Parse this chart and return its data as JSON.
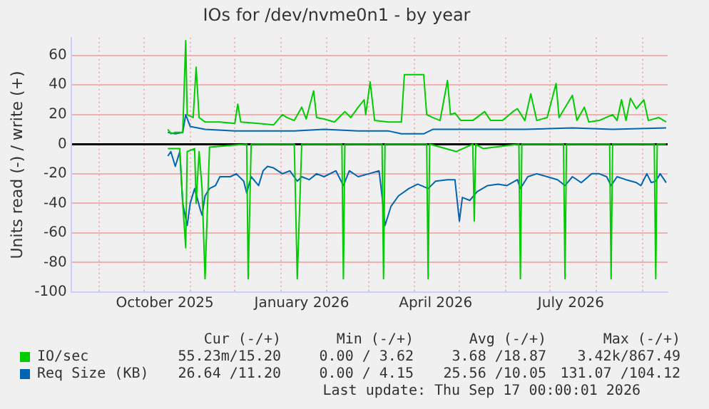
{
  "chart_data": {
    "type": "line",
    "title": "IOs for /dev/nvme0n1 - by year",
    "ylabel": "Units read (-) / write (+)",
    "xlim": [
      "2025-08-13",
      "2026-09-18"
    ],
    "xticks": [
      {
        "value": "2025-09-01",
        "label": null
      },
      {
        "value": "2025-10-01",
        "label": null
      },
      {
        "value": "2025-10-15",
        "label": "October 2025"
      },
      {
        "value": "2025-11-01",
        "label": null
      },
      {
        "value": "2025-12-01",
        "label": null
      },
      {
        "value": "2026-01-01",
        "label": null
      },
      {
        "value": "2026-01-15",
        "label": "January 2026"
      },
      {
        "value": "2026-02-01",
        "label": null
      },
      {
        "value": "2026-03-01",
        "label": null
      },
      {
        "value": "2026-04-01",
        "label": null
      },
      {
        "value": "2026-04-15",
        "label": "April 2026"
      },
      {
        "value": "2026-05-01",
        "label": null
      },
      {
        "value": "2026-06-01",
        "label": null
      },
      {
        "value": "2026-07-01",
        "label": null
      },
      {
        "value": "2026-07-15",
        "label": "July 2026"
      },
      {
        "value": "2026-08-01",
        "label": null
      },
      {
        "value": "2026-09-01",
        "label": null
      }
    ],
    "ylim": [
      -100,
      72
    ],
    "yticks": [
      -100,
      -80,
      -60,
      -40,
      -20,
      0,
      20,
      40,
      60
    ],
    "grid": true,
    "legend": "bottom",
    "series": [
      {
        "name": "IO/sec",
        "color": "#00cc00",
        "x": [
          "2025-10-17",
          "2025-10-19",
          "2025-10-22",
          "2025-10-27",
          "2025-10-29",
          "2025-10-30",
          "2025-11-03",
          "2025-11-05",
          "2025-11-07",
          "2025-11-11",
          "2025-11-21",
          "2025-12-01",
          "2025-12-03",
          "2025-12-05",
          "2025-12-17",
          "2025-12-27",
          "2026-01-02",
          "2026-01-05",
          "2026-01-10",
          "2026-01-15",
          "2026-01-18",
          "2026-01-23",
          "2026-01-25",
          "2026-01-30",
          "2026-02-06",
          "2026-02-13",
          "2026-02-17",
          "2026-02-22",
          "2026-02-26",
          "2026-02-27",
          "2026-03-02",
          "2026-03-05",
          "2026-03-14",
          "2026-03-23",
          "2026-03-25",
          "2026-04-07",
          "2026-04-09",
          "2026-04-13",
          "2026-04-18",
          "2026-04-23",
          "2026-04-25",
          "2026-04-28",
          "2026-05-02",
          "2026-05-10",
          "2026-05-18",
          "2026-05-22",
          "2026-05-30",
          "2026-06-06",
          "2026-06-09",
          "2026-06-14",
          "2026-06-18",
          "2026-06-22",
          "2026-06-29",
          "2026-07-05",
          "2026-07-07",
          "2026-07-16",
          "2026-07-19",
          "2026-07-24",
          "2026-07-27",
          "2026-08-03",
          "2026-08-12",
          "2026-08-15",
          "2026-08-18",
          "2026-08-21",
          "2026-08-24",
          "2026-08-28",
          "2026-09-02",
          "2026-09-05",
          "2026-09-12",
          "2026-09-17"
        ],
        "values": [
          10,
          7,
          8,
          8,
          70,
          20,
          18,
          52,
          18,
          15,
          15,
          14,
          27,
          15,
          14,
          13,
          20,
          18,
          16,
          25,
          17,
          36,
          18,
          17,
          15,
          22,
          18,
          25,
          30,
          20,
          42,
          16,
          15,
          15,
          47,
          47,
          20,
          18,
          16,
          43,
          20,
          21,
          16,
          16,
          22,
          16,
          16,
          22,
          24,
          16,
          34,
          16,
          18,
          41,
          18,
          33,
          16,
          25,
          15,
          16,
          20,
          16,
          30,
          16,
          31,
          24,
          30,
          16,
          18,
          15
        ]
      },
      {
        "color": "#00cc00",
        "x": [
          "2025-10-17",
          "2025-10-25",
          "2025-10-27",
          "2025-10-29",
          "2025-10-30",
          "2025-11-04",
          "2025-11-05",
          "2025-11-07",
          "2025-11-09",
          "2025-11-11",
          "2025-11-14",
          "2025-12-09",
          "2025-12-10",
          "2025-12-12",
          "2026-01-10",
          "2026-01-12",
          "2026-01-15",
          "2026-02-11",
          "2026-02-12",
          "2026-02-13",
          "2026-03-10",
          "2026-03-11",
          "2026-03-12",
          "2026-04-09",
          "2026-04-10",
          "2026-04-11",
          "2026-04-29",
          "2026-05-10",
          "2026-05-11",
          "2026-05-12",
          "2026-05-17",
          "2026-06-10",
          "2026-06-11",
          "2026-06-12",
          "2026-07-10",
          "2026-07-11",
          "2026-07-12",
          "2026-08-10",
          "2026-08-11",
          "2026-08-12",
          "2026-09-09",
          "2026-09-10",
          "2026-09-11",
          "2026-09-17"
        ],
        "values": [
          -3,
          -3,
          -40,
          -70,
          -5,
          -3,
          -40,
          -5,
          -30,
          -91,
          -2,
          0,
          -91,
          0,
          0,
          -91,
          0,
          0,
          -91,
          0,
          0,
          -91,
          0,
          0,
          -91,
          0,
          -5,
          0,
          -52,
          0,
          -3,
          0,
          -91,
          0,
          0,
          -91,
          0,
          0,
          -91,
          0,
          0,
          -91,
          0,
          0
        ]
      },
      {
        "name": "Req Size (KB)",
        "color": "#0066b3",
        "x": [
          "2025-10-17",
          "2025-10-22",
          "2025-10-27",
          "2025-10-29",
          "2025-11-01",
          "2025-11-06",
          "2025-11-11",
          "2025-12-01",
          "2026-01-10",
          "2026-01-30",
          "2026-02-22",
          "2026-03-14",
          "2026-03-23",
          "2026-04-07",
          "2026-04-13",
          "2026-05-10",
          "2026-06-14",
          "2026-07-16",
          "2026-08-12",
          "2026-09-17"
        ],
        "values": [
          8,
          7,
          8,
          20,
          12,
          11,
          10,
          9,
          9,
          10,
          9,
          9,
          7,
          7,
          10,
          10,
          10,
          11,
          10,
          11
        ]
      },
      {
        "color": "#0066b3",
        "x": [
          "2025-10-17",
          "2025-10-19",
          "2025-10-22",
          "2025-10-25",
          "2025-10-27",
          "2025-10-30",
          "2025-11-01",
          "2025-11-04",
          "2025-11-08",
          "2025-11-09",
          "2025-11-11",
          "2025-11-14",
          "2025-11-18",
          "2025-11-21",
          "2025-11-24",
          "2025-11-28",
          "2025-12-02",
          "2025-12-07",
          "2025-12-09",
          "2025-12-12",
          "2025-12-17",
          "2025-12-20",
          "2025-12-23",
          "2025-12-27",
          "2026-01-02",
          "2026-01-07",
          "2026-01-12",
          "2026-01-15",
          "2026-01-20",
          "2026-01-25",
          "2026-01-30",
          "2026-02-07",
          "2026-02-12",
          "2026-02-16",
          "2026-02-22",
          "2026-03-01",
          "2026-03-08",
          "2026-03-10",
          "2026-03-12",
          "2026-03-16",
          "2026-03-21",
          "2026-03-28",
          "2026-04-03",
          "2026-04-10",
          "2026-04-15",
          "2026-04-23",
          "2026-04-28",
          "2026-05-01",
          "2026-05-03",
          "2026-05-08",
          "2026-05-13",
          "2026-05-20",
          "2026-05-27",
          "2026-06-02",
          "2026-06-09",
          "2026-06-11",
          "2026-06-16",
          "2026-06-22",
          "2026-06-29",
          "2026-07-06",
          "2026-07-11",
          "2026-07-16",
          "2026-07-22",
          "2026-07-29",
          "2026-08-03",
          "2026-08-08",
          "2026-08-11",
          "2026-08-15",
          "2026-08-21",
          "2026-08-28",
          "2026-08-31",
          "2026-09-04",
          "2026-09-07",
          "2026-09-10",
          "2026-09-13",
          "2026-09-17"
        ],
        "values": [
          -8,
          -5,
          -15,
          -5,
          -40,
          -55,
          -40,
          -30,
          -45,
          -48,
          -35,
          -30,
          -28,
          -22,
          -22,
          -22,
          -20,
          -25,
          -33,
          -22,
          -28,
          -18,
          -15,
          -16,
          -20,
          -18,
          -25,
          -22,
          -24,
          -20,
          -22,
          -18,
          -28,
          -18,
          -22,
          -20,
          -18,
          -35,
          -55,
          -42,
          -35,
          -30,
          -27,
          -30,
          -25,
          -24,
          -24,
          -52,
          -36,
          -38,
          -32,
          -28,
          -27,
          -28,
          -24,
          -30,
          -22,
          -20,
          -22,
          -24,
          -28,
          -22,
          -26,
          -20,
          -20,
          -22,
          -28,
          -22,
          -24,
          -26,
          -28,
          -20,
          -26,
          -25,
          -20,
          -26
        ]
      }
    ],
    "annotations": [
      "Cur (-/+)",
      "Min (-/+)",
      "Avg (-/+)",
      "Max (-/+)",
      "55.23m/15.20",
      "0.00 / 3.62",
      "3.68 /18.87",
      "3.42k/867.49",
      "26.64 /11.20",
      "0.00 / 4.15",
      "25.56 /10.05",
      "131.07 /104.12",
      "Last update: Thu Sep 17 00:00:01 2026"
    ]
  }
}
